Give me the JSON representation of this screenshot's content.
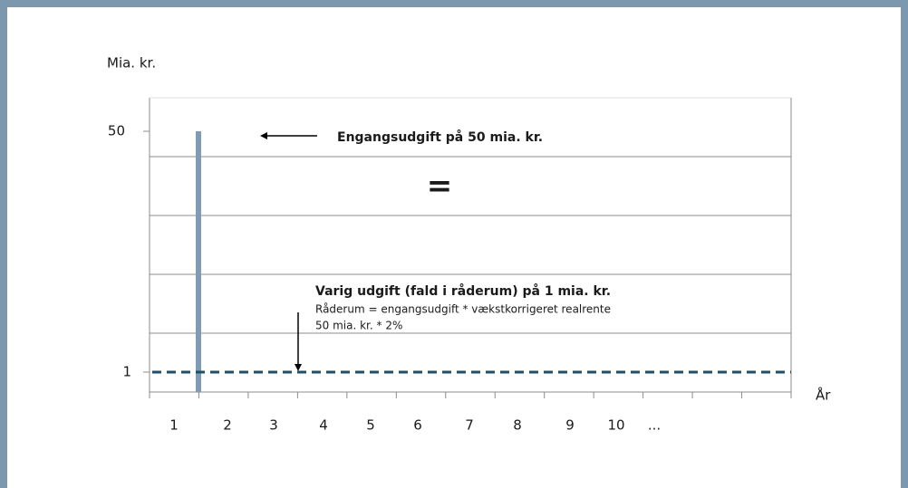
{
  "y_axis_label": "Mia. kr.",
  "x_axis_label": "År",
  "y_tick_labels": [
    "50",
    "1"
  ],
  "x_tick_labels": [
    "1",
    "2",
    "3",
    "4",
    "5",
    "6",
    "7",
    "8",
    "9",
    "10",
    "..."
  ],
  "annotations": {
    "one_time": "Engangsudgift på 50 mia. kr.",
    "equals": "=",
    "permanent": "Varig udgift (fald i råderum) på 1 mia. kr.",
    "formula": "Råderum = engangsudgift * vækstkorrigeret realrente",
    "calculation": "50 mia. kr. * 2%"
  }
}
